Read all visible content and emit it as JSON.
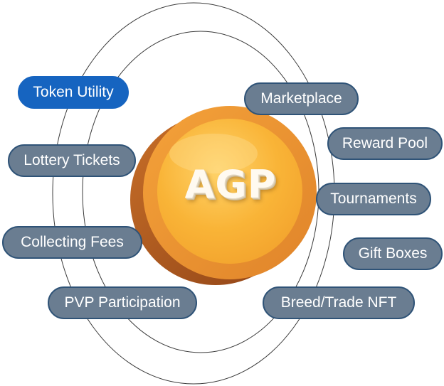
{
  "coin": {
    "label": "AGP",
    "colors": {
      "face": "#f9b437",
      "rim": "#e7902f",
      "edge": "#a4511e",
      "label": "#fffaf0"
    }
  },
  "pills": [
    {
      "label": "Token Utility",
      "active": true
    },
    {
      "label": "Marketplace",
      "active": false
    },
    {
      "label": "Reward Pool",
      "active": false
    },
    {
      "label": "Lottery Tickets",
      "active": false
    },
    {
      "label": "Tournaments",
      "active": false
    },
    {
      "label": "Collecting Fees",
      "active": false
    },
    {
      "label": "Gift Boxes",
      "active": false
    },
    {
      "label": "PVP Participation",
      "active": false
    },
    {
      "label": "Breed/Trade NFT",
      "active": false
    }
  ],
  "colors": {
    "pill_fill": "#6a7d91",
    "pill_border": "#2f5377",
    "active_fill": "#1664c0",
    "orbit_line": "#3a3a3a"
  }
}
